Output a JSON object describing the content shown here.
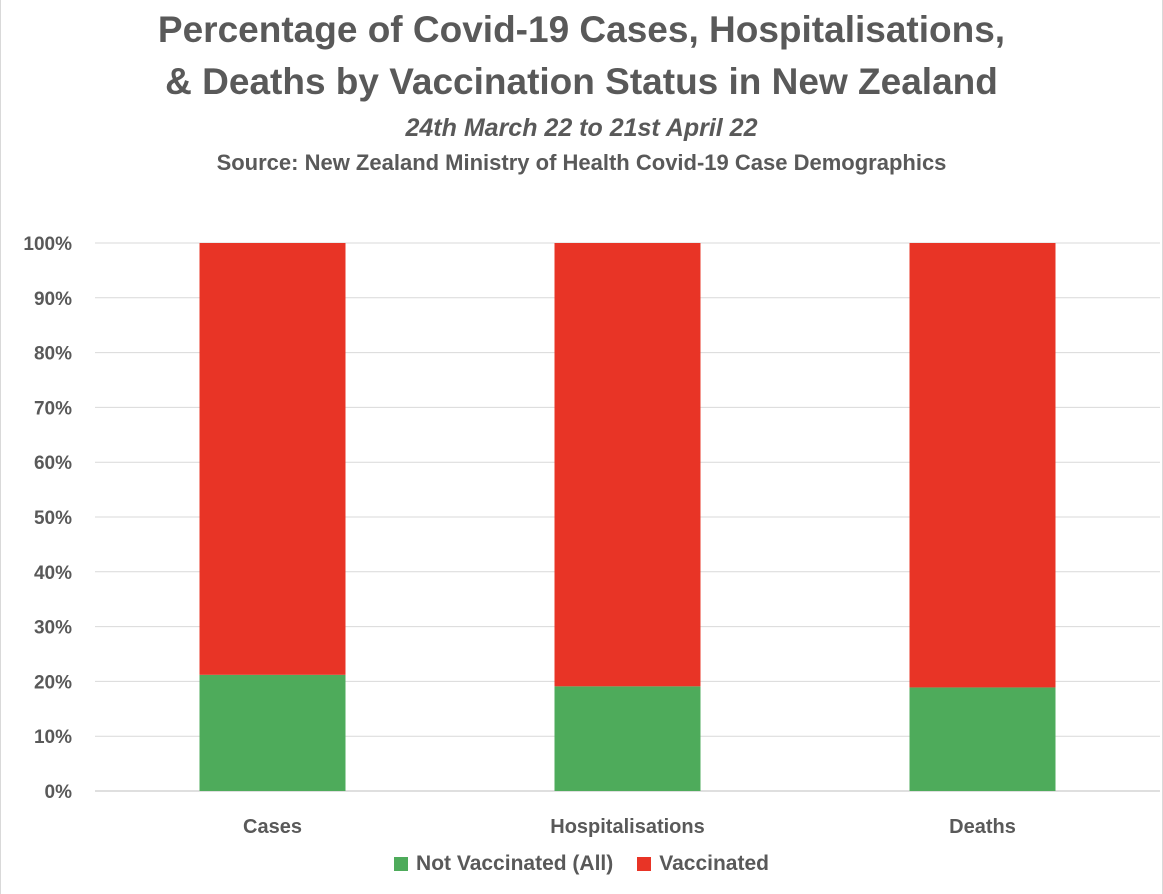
{
  "chart_data": {
    "type": "bar",
    "stacked": true,
    "title_line1": "Percentage of Covid-19 Cases, Hospitalisations,",
    "title_line2": "& Deaths by Vaccination Status in New Zealand",
    "subtitle": "24th March 22 to 21st April 22",
    "source": "Source: New Zealand Ministry of Health Covid-19 Case Demographics",
    "categories": [
      "Cases",
      "Hospitalisations",
      "Deaths"
    ],
    "series": [
      {
        "name": "Not Vaccinated (All)",
        "color": "#4eab5b",
        "values": [
          21.2,
          19.1,
          18.9
        ]
      },
      {
        "name": "Vaccinated",
        "color": "#e83426",
        "values": [
          78.8,
          80.9,
          81.1
        ]
      }
    ],
    "ylim": [
      0,
      100
    ],
    "yticks": [
      "0%",
      "10%",
      "20%",
      "30%",
      "40%",
      "50%",
      "60%",
      "70%",
      "80%",
      "90%",
      "100%"
    ],
    "grid": true,
    "legend_position": "bottom"
  }
}
